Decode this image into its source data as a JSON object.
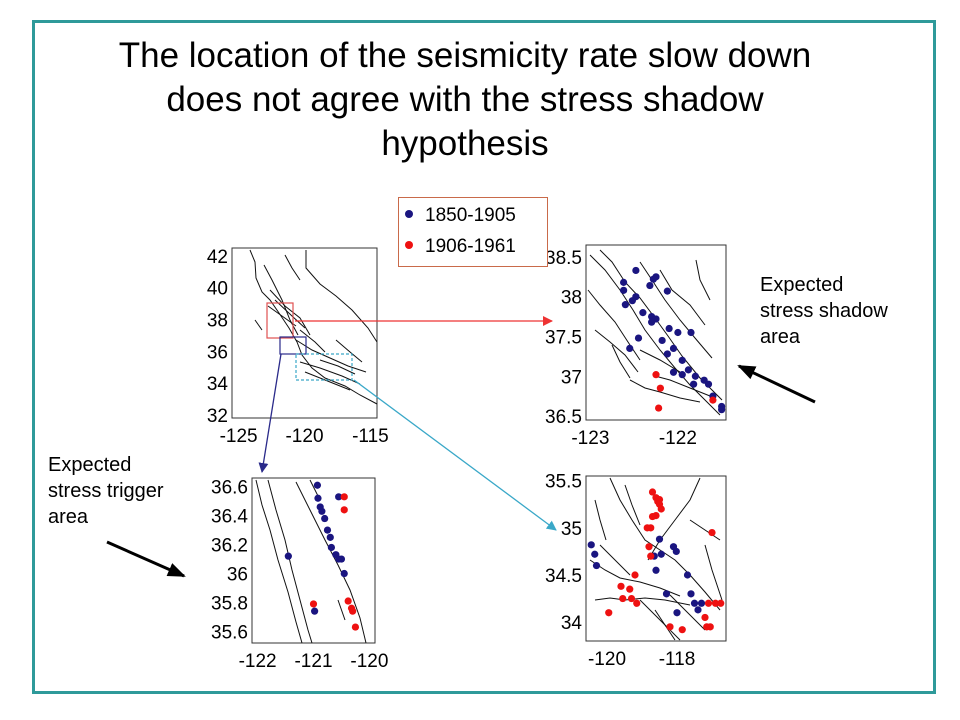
{
  "title": "The location of the seismicity rate slow down does not agree with the stress shadow hypothesis",
  "colors": {
    "frame": "#2e9a9a",
    "series_early": "#1a1580",
    "series_late": "#ee1111",
    "arrow_red": "#ee3333",
    "arrow_blue": "#2a2a8a",
    "arrow_cyan": "#3aa8c8"
  },
  "legend": {
    "items": [
      {
        "label": "1850-1905",
        "color": "#1a1580"
      },
      {
        "label": "1906-1961",
        "color": "#ee1111"
      }
    ]
  },
  "annotations": {
    "shadow": [
      "Expected",
      "stress shadow",
      "area"
    ],
    "trigger": [
      "Expected",
      "stress trigger",
      "area"
    ]
  },
  "chart_data": [
    {
      "type": "scatter",
      "title": "",
      "xlabel": "",
      "ylabel": "",
      "xlim": [
        -125.5,
        -114.5
      ],
      "ylim": [
        31.8,
        42.5
      ],
      "x_ticks": [
        "-125",
        "-120",
        "-115"
      ],
      "y_ticks": [
        "42",
        "40",
        "38",
        "36",
        "34",
        "32"
      ],
      "series": []
    },
    {
      "type": "scatter",
      "title": "",
      "xlim": [
        -123.05,
        -121.45
      ],
      "ylim": [
        36.45,
        38.65
      ],
      "x_ticks": [
        "-123",
        "-122"
      ],
      "y_ticks": [
        "38.5",
        "38",
        "37.5",
        "37",
        "36.5"
      ],
      "series": [
        {
          "name": "1850-1905",
          "points": [
            [
              -122.48,
              38.33
            ],
            [
              -122.62,
              38.08
            ],
            [
              -122.62,
              38.18
            ],
            [
              -122.28,
              38.22
            ],
            [
              -122.25,
              38.25
            ],
            [
              -122.32,
              38.14
            ],
            [
              -122.12,
              38.07
            ],
            [
              -122.48,
              38.0
            ],
            [
              -122.52,
              37.95
            ],
            [
              -122.6,
              37.9
            ],
            [
              -122.4,
              37.8
            ],
            [
              -122.3,
              37.75
            ],
            [
              -122.25,
              37.72
            ],
            [
              -122.1,
              37.6
            ],
            [
              -122.0,
              37.55
            ],
            [
              -122.3,
              37.68
            ],
            [
              -122.45,
              37.48
            ],
            [
              -122.55,
              37.35
            ],
            [
              -122.18,
              37.45
            ],
            [
              -121.85,
              37.55
            ],
            [
              -122.05,
              37.35
            ],
            [
              -122.12,
              37.28
            ],
            [
              -121.95,
              37.2
            ],
            [
              -121.88,
              37.08
            ],
            [
              -121.95,
              37.02
            ],
            [
              -122.05,
              37.05
            ],
            [
              -121.8,
              37.0
            ],
            [
              -121.7,
              36.95
            ],
            [
              -121.65,
              36.9
            ],
            [
              -121.82,
              36.9
            ],
            [
              -121.6,
              36.75
            ],
            [
              -121.5,
              36.62
            ],
            [
              -121.5,
              36.58
            ]
          ]
        },
        {
          "name": "1906-1961",
          "points": [
            [
              -122.25,
              37.02
            ],
            [
              -122.2,
              36.85
            ],
            [
              -122.22,
              36.6
            ],
            [
              -121.6,
              36.7
            ]
          ]
        }
      ]
    },
    {
      "type": "scatter",
      "title": "",
      "xlim": [
        -122.1,
        -119.9
      ],
      "ylim": [
        35.52,
        36.66
      ],
      "x_ticks": [
        "-122",
        "-121",
        "-120"
      ],
      "y_ticks": [
        "36.6",
        "36.4",
        "36.2",
        "36",
        "35.8",
        "35.6"
      ],
      "series": [
        {
          "name": "1850-1905",
          "points": [
            [
              -120.93,
              36.61
            ],
            [
              -120.92,
              36.52
            ],
            [
              -120.88,
              36.46
            ],
            [
              -120.85,
              36.43
            ],
            [
              -120.8,
              36.38
            ],
            [
              -120.75,
              36.3
            ],
            [
              -120.7,
              36.25
            ],
            [
              -120.68,
              36.18
            ],
            [
              -120.6,
              36.13
            ],
            [
              -120.55,
              36.1
            ],
            [
              -120.5,
              36.1
            ],
            [
              -121.45,
              36.12
            ],
            [
              -120.45,
              36.0
            ],
            [
              -120.55,
              36.53
            ],
            [
              -120.98,
              35.74
            ]
          ]
        },
        {
          "name": "1906-1961",
          "points": [
            [
              -120.45,
              36.53
            ],
            [
              -120.45,
              36.44
            ],
            [
              -120.38,
              35.81
            ],
            [
              -120.32,
              35.76
            ],
            [
              -120.3,
              35.74
            ],
            [
              -120.25,
              35.63
            ],
            [
              -121.0,
              35.79
            ]
          ]
        }
      ]
    },
    {
      "type": "scatter",
      "title": "",
      "xlim": [
        -120.6,
        -116.6
      ],
      "ylim": [
        33.8,
        35.55
      ],
      "x_ticks": [
        "-120",
        "-118"
      ],
      "y_ticks": [
        "35.5",
        "35",
        "34.5",
        "34"
      ],
      "series": [
        {
          "name": "1850-1905",
          "points": [
            [
              -120.45,
              34.82
            ],
            [
              -120.35,
              34.72
            ],
            [
              -120.3,
              34.6
            ],
            [
              -118.5,
              34.88
            ],
            [
              -118.45,
              34.72
            ],
            [
              -118.65,
              34.7
            ],
            [
              -118.6,
              34.55
            ],
            [
              -118.1,
              34.8
            ],
            [
              -118.02,
              34.75
            ],
            [
              -117.7,
              34.5
            ],
            [
              -117.6,
              34.3
            ],
            [
              -117.5,
              34.2
            ],
            [
              -117.3,
              34.2
            ],
            [
              -117.4,
              34.13
            ],
            [
              -118.3,
              34.3
            ],
            [
              -118.0,
              34.1
            ]
          ]
        },
        {
          "name": "1906-1961",
          "points": [
            [
              -118.7,
              35.38
            ],
            [
              -118.6,
              35.32
            ],
            [
              -118.55,
              35.28
            ],
            [
              -118.5,
              35.3
            ],
            [
              -118.5,
              35.25
            ],
            [
              -118.45,
              35.2
            ],
            [
              -118.6,
              35.13
            ],
            [
              -118.7,
              35.12
            ],
            [
              -118.75,
              35.0
            ],
            [
              -118.85,
              35.0
            ],
            [
              -118.8,
              34.8
            ],
            [
              -118.75,
              34.7
            ],
            [
              -119.2,
              34.5
            ],
            [
              -119.35,
              34.35
            ],
            [
              -119.3,
              34.25
            ],
            [
              -119.15,
              34.2
            ],
            [
              -119.6,
              34.38
            ],
            [
              -119.55,
              34.25
            ],
            [
              -119.95,
              34.1
            ],
            [
              -117.0,
              34.95
            ],
            [
              -117.2,
              34.05
            ],
            [
              -117.1,
              34.2
            ],
            [
              -116.9,
              34.2
            ],
            [
              -116.75,
              34.2
            ],
            [
              -117.15,
              33.95
            ],
            [
              -117.05,
              33.95
            ],
            [
              -118.2,
              33.95
            ],
            [
              -117.85,
              33.92
            ]
          ]
        }
      ]
    }
  ]
}
